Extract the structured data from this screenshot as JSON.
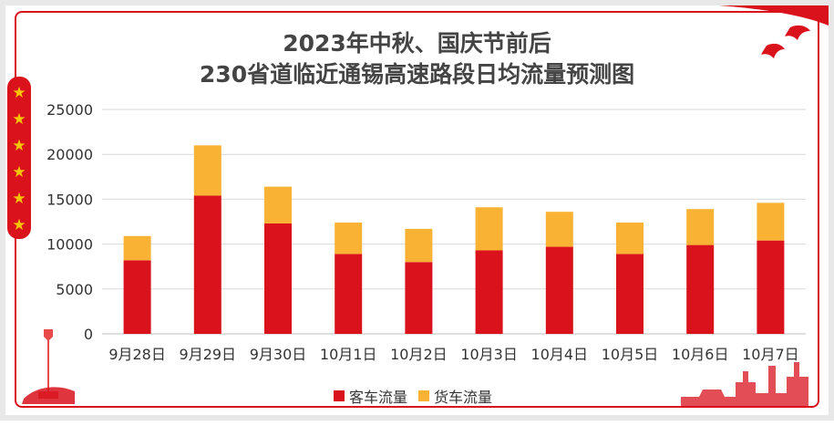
{
  "title_line1": "2023年中秋、国庆节前后",
  "title_line2": "230省道临近通锡高速路段日均流量预测图",
  "colors": {
    "passenger": "#d9121c",
    "freight": "#f9b233",
    "frame": "#d9121c",
    "star": "#f7c500",
    "grid": "#d9d9d9"
  },
  "decor": {
    "star_icon": "★",
    "star_count": 6
  },
  "chart_data": {
    "type": "bar",
    "stacked": true,
    "categories": [
      "9月28日",
      "9月29日",
      "9月30日",
      "10月1日",
      "10月2日",
      "10月3日",
      "10月4日",
      "10月5日",
      "10月6日",
      "10月7日"
    ],
    "series": [
      {
        "name": "客车流量",
        "values": [
          8200,
          15400,
          12300,
          8900,
          8000,
          9300,
          9700,
          8900,
          9900,
          10400
        ],
        "color": "#d9121c"
      },
      {
        "name": "货车流量",
        "values": [
          2700,
          5600,
          4100,
          3500,
          3700,
          4800,
          3900,
          3500,
          4000,
          4200
        ],
        "color": "#f9b233"
      }
    ],
    "ylim": [
      0,
      25000
    ],
    "yticks": [
      "0",
      "5000",
      "10000",
      "15000",
      "20000",
      "25000"
    ],
    "grid": true,
    "legend_position": "bottom",
    "xlabel": "",
    "ylabel": ""
  }
}
